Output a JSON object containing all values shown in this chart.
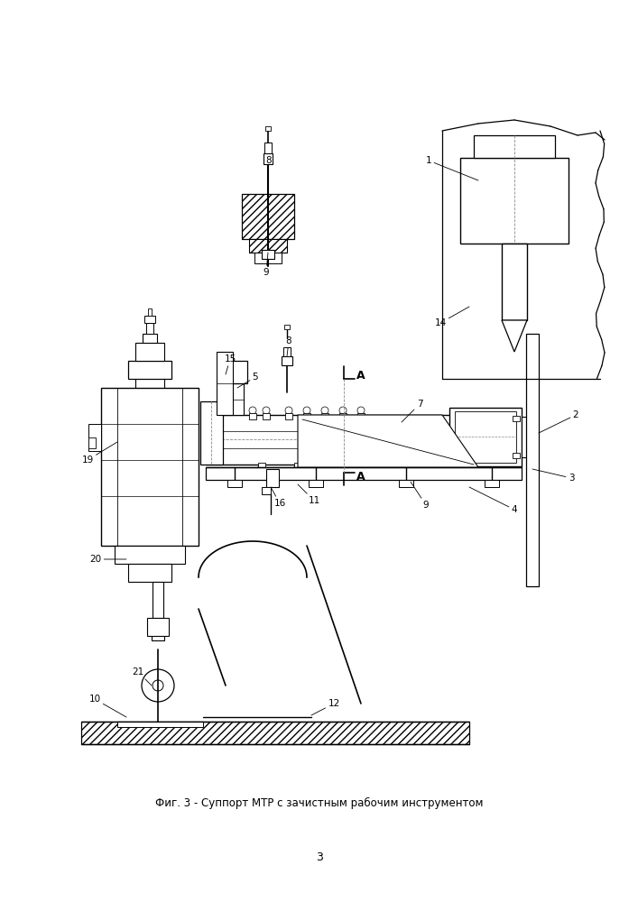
{
  "title": "Фиг. 3 - Суппорт МТР с зачистным рабочим инструментом",
  "page_number": "3",
  "bg_color": "#ffffff",
  "figsize": [
    7.07,
    10.0
  ],
  "dpi": 100
}
